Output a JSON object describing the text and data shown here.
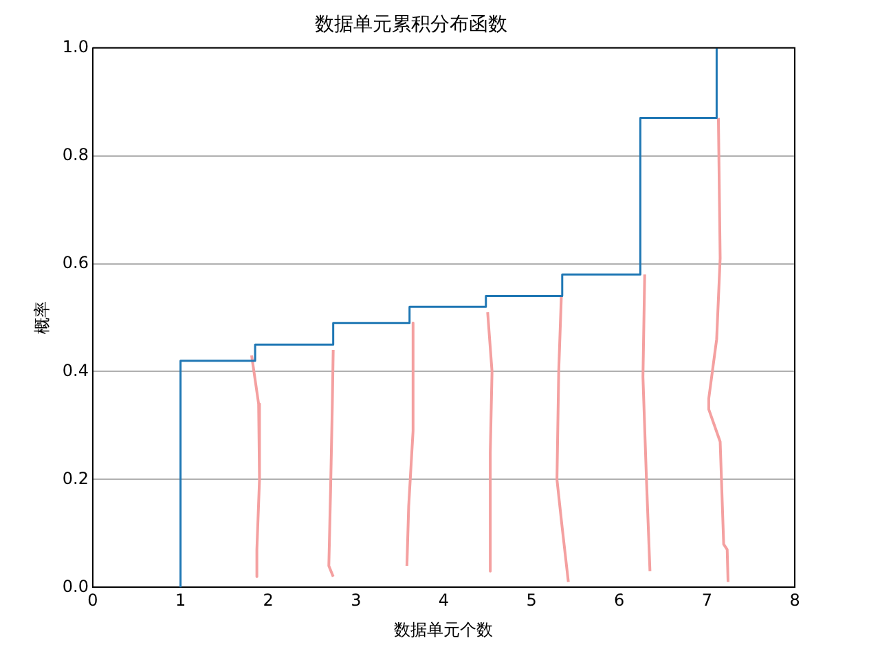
{
  "chart_data": {
    "type": "line",
    "title": "数据单元累积分布函数",
    "xlabel": "数据单元个数",
    "ylabel": "概率",
    "xlim": [
      0,
      8
    ],
    "xticks": [
      0,
      1,
      2,
      3,
      4,
      5,
      6,
      7,
      8
    ],
    "ylim": [
      0,
      1
    ],
    "yticks": [
      {
        "value": 0,
        "label": "0.0"
      },
      0.2,
      0.4,
      0.6,
      0.8,
      {
        "value": 1,
        "label": "1.0"
      }
    ],
    "grid": "y",
    "marker": "none",
    "line_style": "solid",
    "series": [
      {
        "type": "step",
        "color": "#1f77b4",
        "x": [
          1,
          1,
          1.85,
          2.74,
          3.61,
          4.48,
          5.35,
          6.24,
          7.11
        ],
        "values": [
          0,
          0.42,
          0.45,
          0.49,
          0.52,
          0.54,
          0.58,
          0.87,
          1.0
        ]
      },
      {
        "color": "#f4a0a0",
        "x": [
          1.81,
          1.89,
          1.9,
          1.87,
          1.87
        ],
        "values": [
          0.43,
          0.34,
          0.2,
          0.07,
          0.02
        ]
      },
      {
        "color": "#f4a0a0",
        "x": [
          2.74,
          2.73,
          2.71,
          2.69,
          2.74
        ],
        "values": [
          0.44,
          0.34,
          0.18,
          0.04,
          0.02
        ]
      },
      {
        "color": "#f4a0a0",
        "x": [
          3.65,
          3.65,
          3.6,
          3.58
        ],
        "values": [
          0.49,
          0.29,
          0.15,
          0.04
        ]
      },
      {
        "color": "#f4a0a0",
        "x": [
          4.5,
          4.55,
          4.53,
          4.53,
          4.53
        ],
        "values": [
          0.51,
          0.4,
          0.25,
          0.07,
          0.03
        ]
      },
      {
        "color": "#f4a0a0",
        "x": [
          5.34,
          5.31,
          5.29,
          5.35,
          5.42
        ],
        "values": [
          0.54,
          0.4,
          0.2,
          0.11,
          0.01
        ]
      },
      {
        "color": "#f4a0a0",
        "x": [
          6.29,
          6.27,
          6.31,
          6.35
        ],
        "values": [
          0.58,
          0.39,
          0.2,
          0.03
        ]
      },
      {
        "color": "#f4a0a0",
        "x": [
          7.13,
          7.15,
          7.11,
          7.02,
          7.02,
          7.15,
          7.19,
          7.23,
          7.24
        ],
        "values": [
          0.87,
          0.61,
          0.46,
          0.35,
          0.33,
          0.27,
          0.08,
          0.07,
          0.01
        ]
      }
    ]
  }
}
